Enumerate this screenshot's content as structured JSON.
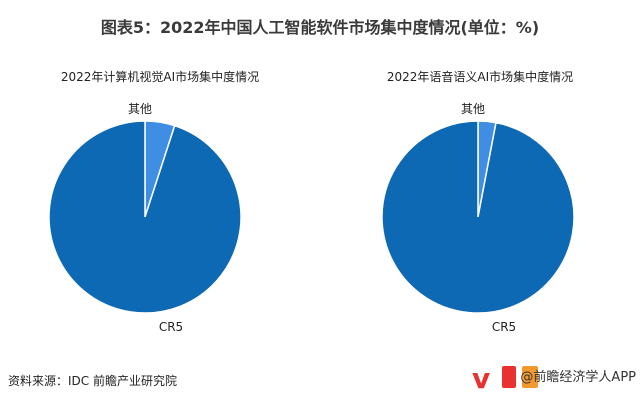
{
  "title": "图表5：2022年中国人工智能软件市场集中度情况(单位：%)",
  "source": "资料来源：IDC 前瞻产业研究院",
  "watermark_text": "@前瞻经济学人APP",
  "colors": {
    "cr5": "#0e69b4",
    "other": "#3f8ee3",
    "edge": "#ffffff"
  },
  "chart_data": [
    {
      "type": "pie",
      "title": "2022年计算机视觉AI市场集中度情况",
      "labels": [
        "CR5",
        "其他"
      ],
      "values": [
        95,
        5
      ]
    },
    {
      "type": "pie",
      "title": "2022年语音语义AI市场集中度情况",
      "labels": [
        "CR5",
        "其他"
      ],
      "values": [
        97,
        3
      ]
    }
  ]
}
